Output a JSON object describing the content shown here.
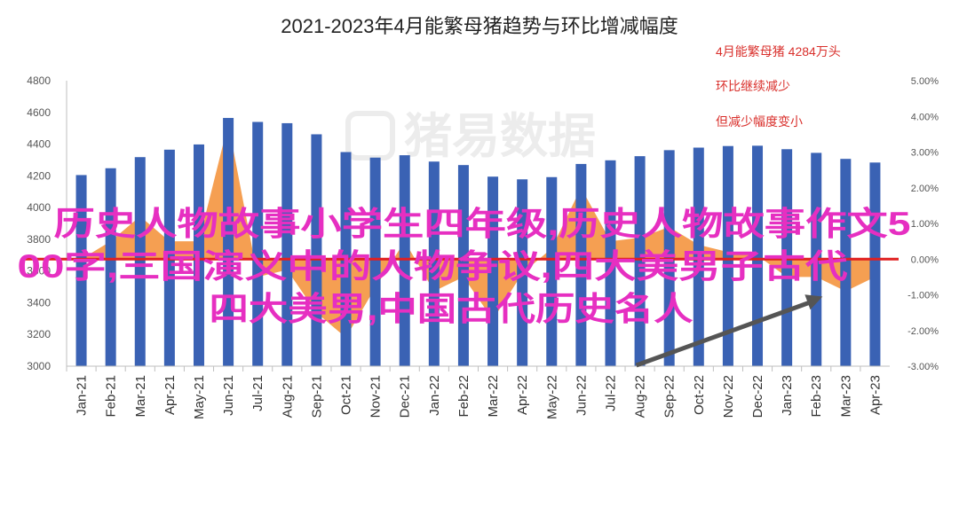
{
  "chart_data": {
    "type": "bar",
    "title": "2021-2023年4月能繁母猪趋势与环比增减幅度",
    "categories": [
      "Jan-21",
      "Feb-21",
      "Mar-21",
      "Apr-21",
      "May-21",
      "Jun-21",
      "Jul-21",
      "Aug-21",
      "Sep-21",
      "Oct-21",
      "Nov-21",
      "Dec-21",
      "Jan-22",
      "Feb-22",
      "Mar-22",
      "Apr-22",
      "May-22",
      "Jun-22",
      "Jul-22",
      "Aug-22",
      "Sep-22",
      "Oct-22",
      "Nov-22",
      "Dec-22",
      "Jan-23",
      "Feb-23",
      "Mar-23",
      "Apr-23"
    ],
    "series": [
      {
        "type": "bar",
        "axis": "left",
        "color": "#3a62b4",
        "values": [
          4205,
          4248,
          4318,
          4365,
          4398,
          4565,
          4540,
          4532,
          4462,
          4350,
          4315,
          4330,
          4290,
          4268,
          4195,
          4178,
          4192,
          4275,
          4298,
          4324,
          4362,
          4378,
          4388,
          4390,
          4368,
          4345,
          4307,
          4284
        ]
      },
      {
        "type": "area",
        "axis": "right",
        "color": "#f4923a",
        "values": [
          0.0,
          0.5,
          1.2,
          0.5,
          0.5,
          3.8,
          -0.5,
          -0.3,
          -1.5,
          -2.2,
          -0.8,
          0.5,
          -0.9,
          -0.5,
          -1.7,
          -0.4,
          0.3,
          2.0,
          0.5,
          0.6,
          0.9,
          0.4,
          0.2,
          0.1,
          -0.5,
          -0.5,
          -0.9,
          -0.5
        ]
      }
    ],
    "ylim": [
      3000,
      4800
    ],
    "yticks": [
      "4800",
      "4600",
      "4400",
      "4200",
      "4000",
      "3800",
      "3600",
      "3400",
      "3200",
      "3000"
    ],
    "y2lim": [
      -3.0,
      5.0
    ],
    "y2ticks": [
      "5.00%",
      "4.00%",
      "3.00%",
      "2.00%",
      "1.00%",
      "0.00%",
      "-1.00%",
      "-2.00%",
      "-3.00%"
    ],
    "xlabel": "",
    "ylabel": "",
    "grid": false,
    "annotations": [
      "4月能繁母猪 4284万头",
      "环比继续减少",
      "但减少幅度变小"
    ],
    "trend_arrow": {
      "from": "Aug-22",
      "to": "Mar-23"
    }
  },
  "watermark": "猪易数据",
  "overlay_text": [
    "历史人物故事小学生四年级,历史人物故事作文5",
    "00字,三国演义中的人物争议,四大美男子古代",
    "四大美男,中国古代历史名人"
  ],
  "colors": {
    "bar": "#3a62b4",
    "area": "#f4923a",
    "zero_line": "#e02020",
    "arrow": "#555555",
    "note": "#d9302c",
    "overlay": "#e62fc1"
  }
}
